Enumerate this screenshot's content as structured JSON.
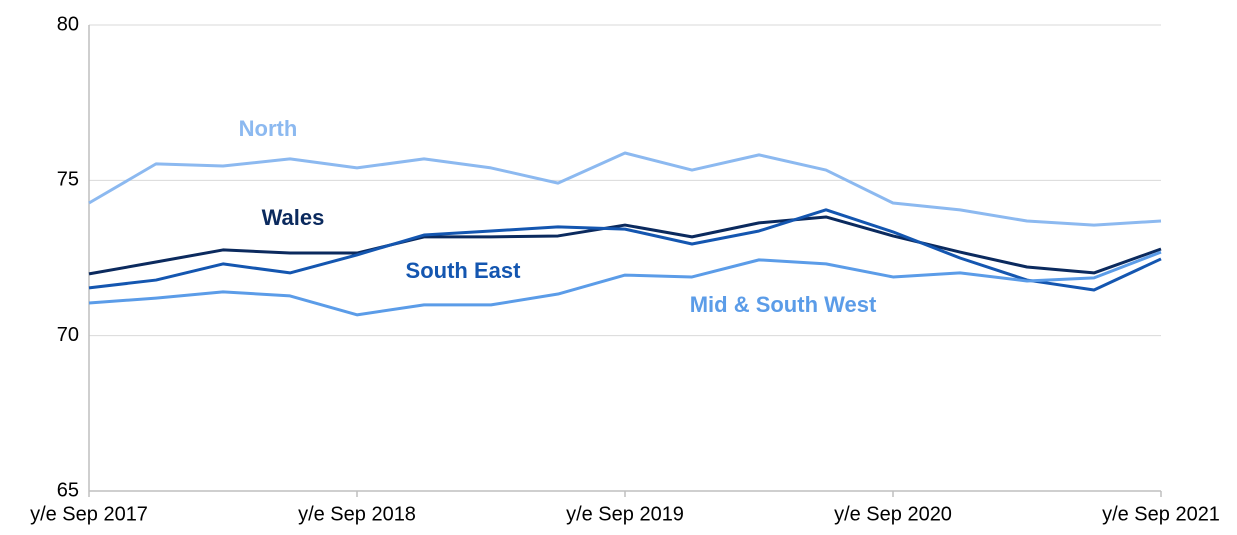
{
  "chart_data": {
    "type": "line",
    "categories": [
      "y/e Sep 2017",
      null,
      null,
      null,
      "y/e Sep 2018",
      null,
      null,
      null,
      "y/e Sep 2019",
      null,
      null,
      null,
      "y/e Sep 2020",
      null,
      null,
      null,
      "y/e Sep 2021"
    ],
    "series": [
      {
        "name": "North",
        "color": "#8cb9f0",
        "values": [
          74.27,
          75.53,
          75.46,
          75.69,
          75.4,
          75.69,
          75.4,
          74.91,
          75.88,
          75.33,
          75.82,
          75.33,
          74.27,
          74.05,
          73.69,
          73.56,
          73.69
        ]
      },
      {
        "name": "Wales",
        "color": "#0b2a5e",
        "values": [
          71.99,
          72.37,
          72.76,
          72.66,
          72.66,
          73.18,
          73.18,
          73.21,
          73.56,
          73.18,
          73.63,
          73.82,
          73.21,
          72.69,
          72.21,
          72.02,
          72.79
        ]
      },
      {
        "name": "South East",
        "color": "#1456b0",
        "values": [
          71.54,
          71.79,
          72.31,
          72.02,
          72.6,
          73.24,
          73.37,
          73.5,
          73.43,
          72.95,
          73.37,
          74.05,
          73.34,
          72.5,
          71.79,
          71.47,
          72.47
        ]
      },
      {
        "name": "Mid & South West",
        "color": "#5b9ce8",
        "values": [
          71.05,
          71.21,
          71.41,
          71.28,
          70.67,
          70.99,
          70.99,
          71.34,
          71.95,
          71.89,
          72.44,
          72.31,
          71.89,
          72.02,
          71.76,
          71.86,
          72.69
        ]
      }
    ],
    "ylim": [
      65,
      80
    ],
    "yticks": [
      65,
      70,
      75,
      80
    ],
    "grid": true
  }
}
